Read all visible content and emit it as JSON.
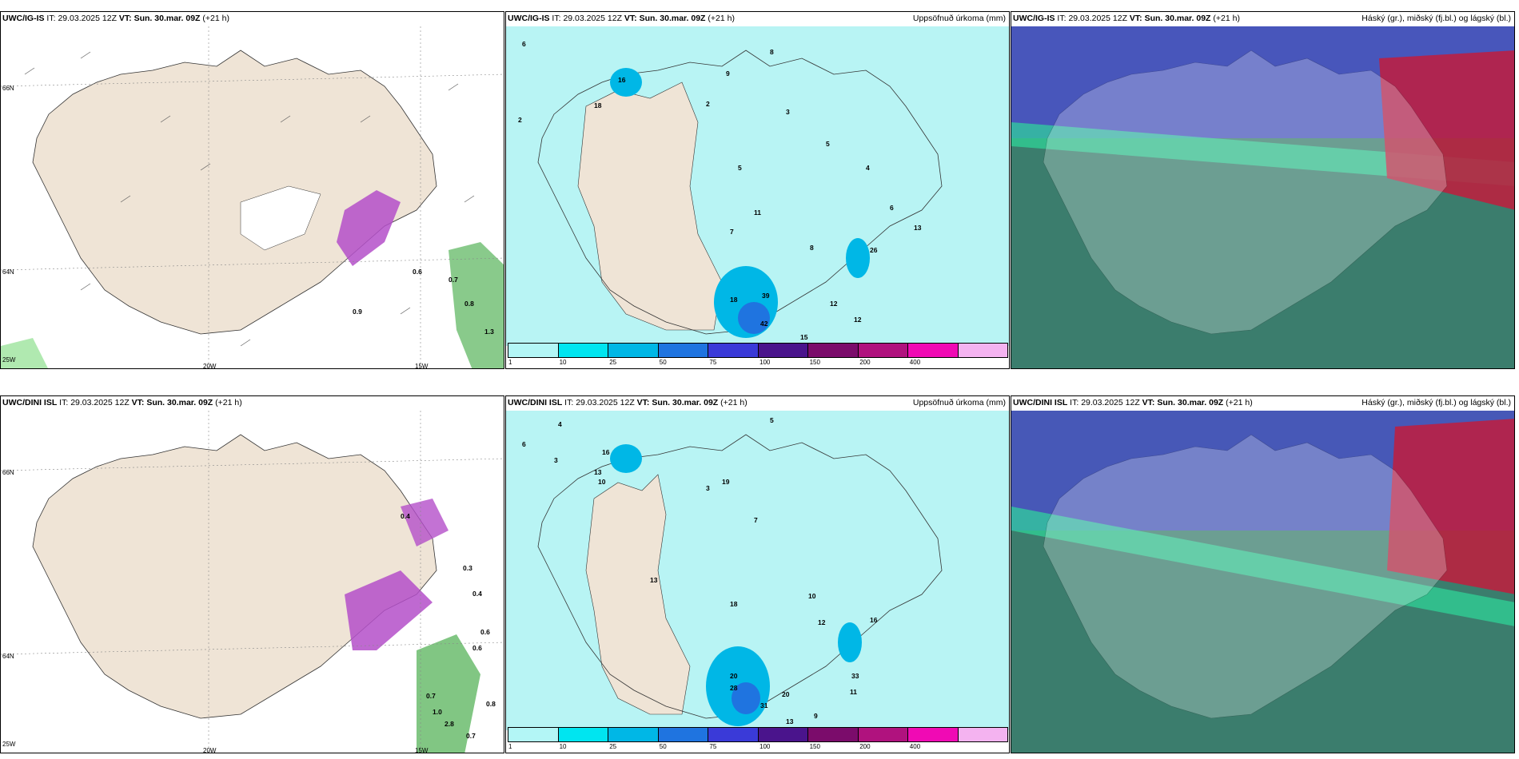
{
  "rows": [
    {
      "model": "UWC/IG-IS",
      "it_label": "IT:",
      "it_value": "29.03.2025 12Z",
      "vt_label": "VT:",
      "vt_value": "Sun. 30.mar. 09Z",
      "lead": "(+21 h)",
      "precip_title": "Uppsöfnuð úrkoma (mm)",
      "cloud_title": "Háský (gr.), miðský (fj.bl.) og lágský (bl.)",
      "axis": {
        "lat_top": "66N",
        "lat_mid": "64N",
        "lon_left": "25W",
        "lon_mid": "20W",
        "lon_right": "15W"
      },
      "wind_values": [
        "0.6",
        "0.7",
        "0.8",
        "0.9",
        "1.3"
      ],
      "precip_values": [
        "6",
        "2",
        "9",
        "8",
        "2",
        "16",
        "18",
        "3",
        "5",
        "7",
        "11",
        "5",
        "4",
        "6",
        "8",
        "12",
        "18",
        "39",
        "42",
        "15",
        "12",
        "13",
        "26"
      ]
    },
    {
      "model": "UWC/DINI ISL",
      "it_label": "IT:",
      "it_value": "29.03.2025 12Z",
      "vt_label": "VT:",
      "vt_value": "Sun. 30.mar. 09Z",
      "lead": "(+21 h)",
      "precip_title": "Uppsöfnuð úrkoma (mm)",
      "cloud_title": "Háský (gr.), miðský (fj.bl.) og lágský (bl.)",
      "axis": {
        "lat_top": "66N",
        "lat_mid": "64N",
        "lon_left": "25W",
        "lon_mid": "20W",
        "lon_right": "15W"
      },
      "wind_values": [
        "0.4",
        "0.3",
        "0.4",
        "0.6",
        "0.6",
        "0.7",
        "1.0",
        "2.8",
        "0.8",
        "0.7"
      ],
      "precip_values": [
        "4",
        "6",
        "3",
        "16",
        "13",
        "10",
        "19",
        "5",
        "7",
        "3",
        "13",
        "18",
        "20",
        "28",
        "31",
        "20",
        "9",
        "11",
        "33",
        "13",
        "10",
        "12",
        "16"
      ]
    }
  ],
  "colorbar": {
    "labels": [
      "1",
      "10",
      "25",
      "50",
      "75",
      "100",
      "150",
      "200",
      "400"
    ],
    "colors": [
      "#b3f6f6",
      "#00e5f0",
      "#00b7e6",
      "#1f74e0",
      "#3a3ad8",
      "#4a148c",
      "#7b0c6b",
      "#b0127e",
      "#f00ab4",
      "#f4b3f0"
    ]
  },
  "colors": {
    "land": "#efe4d6",
    "precip_light": "#b8f4f4",
    "wind_shade_green": "#57b35a",
    "snow_purple": "#b44fc9",
    "cloud_high": "#3b7d6d",
    "cloud_mid": "#4b4fc9",
    "cloud_low": "#c21c3d"
  }
}
